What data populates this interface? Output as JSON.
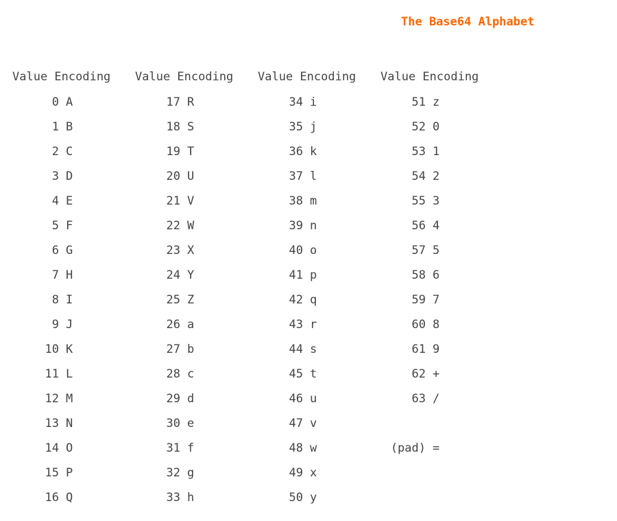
{
  "title": "The Base64 Alphabet",
  "headers": [
    "Value Encoding",
    "Value Encoding",
    "Value Encoding",
    "Value Encoding"
  ],
  "columns": [
    [
      {
        "value": "0",
        "encoding": "A"
      },
      {
        "value": "1",
        "encoding": "B"
      },
      {
        "value": "2",
        "encoding": "C"
      },
      {
        "value": "3",
        "encoding": "D"
      },
      {
        "value": "4",
        "encoding": "E"
      },
      {
        "value": "5",
        "encoding": "F"
      },
      {
        "value": "6",
        "encoding": "G"
      },
      {
        "value": "7",
        "encoding": "H"
      },
      {
        "value": "8",
        "encoding": "I"
      },
      {
        "value": "9",
        "encoding": "J"
      },
      {
        "value": "10",
        "encoding": "K"
      },
      {
        "value": "11",
        "encoding": "L"
      },
      {
        "value": "12",
        "encoding": "M"
      },
      {
        "value": "13",
        "encoding": "N"
      },
      {
        "value": "14",
        "encoding": "O"
      },
      {
        "value": "15",
        "encoding": "P"
      },
      {
        "value": "16",
        "encoding": "Q"
      }
    ],
    [
      {
        "value": "17",
        "encoding": "R"
      },
      {
        "value": "18",
        "encoding": "S"
      },
      {
        "value": "19",
        "encoding": "T"
      },
      {
        "value": "20",
        "encoding": "U"
      },
      {
        "value": "21",
        "encoding": "V"
      },
      {
        "value": "22",
        "encoding": "W"
      },
      {
        "value": "23",
        "encoding": "X"
      },
      {
        "value": "24",
        "encoding": "Y"
      },
      {
        "value": "25",
        "encoding": "Z"
      },
      {
        "value": "26",
        "encoding": "a"
      },
      {
        "value": "27",
        "encoding": "b"
      },
      {
        "value": "28",
        "encoding": "c"
      },
      {
        "value": "29",
        "encoding": "d"
      },
      {
        "value": "30",
        "encoding": "e"
      },
      {
        "value": "31",
        "encoding": "f"
      },
      {
        "value": "32",
        "encoding": "g"
      },
      {
        "value": "33",
        "encoding": "h"
      }
    ],
    [
      {
        "value": "34",
        "encoding": "i"
      },
      {
        "value": "35",
        "encoding": "j"
      },
      {
        "value": "36",
        "encoding": "k"
      },
      {
        "value": "37",
        "encoding": "l"
      },
      {
        "value": "38",
        "encoding": "m"
      },
      {
        "value": "39",
        "encoding": "n"
      },
      {
        "value": "40",
        "encoding": "o"
      },
      {
        "value": "41",
        "encoding": "p"
      },
      {
        "value": "42",
        "encoding": "q"
      },
      {
        "value": "43",
        "encoding": "r"
      },
      {
        "value": "44",
        "encoding": "s"
      },
      {
        "value": "45",
        "encoding": "t"
      },
      {
        "value": "46",
        "encoding": "u"
      },
      {
        "value": "47",
        "encoding": "v"
      },
      {
        "value": "48",
        "encoding": "w"
      },
      {
        "value": "49",
        "encoding": "x"
      },
      {
        "value": "50",
        "encoding": "y"
      }
    ],
    [
      {
        "value": "51",
        "encoding": "z"
      },
      {
        "value": "52",
        "encoding": "0"
      },
      {
        "value": "53",
        "encoding": "1"
      },
      {
        "value": "54",
        "encoding": "2"
      },
      {
        "value": "55",
        "encoding": "3"
      },
      {
        "value": "56",
        "encoding": "4"
      },
      {
        "value": "57",
        "encoding": "5"
      },
      {
        "value": "58",
        "encoding": "6"
      },
      {
        "value": "59",
        "encoding": "7"
      },
      {
        "value": "60",
        "encoding": "8"
      },
      {
        "value": "61",
        "encoding": "9"
      },
      {
        "value": "62",
        "encoding": "+"
      },
      {
        "value": "63",
        "encoding": "/"
      },
      {
        "value": "",
        "encoding": ""
      },
      {
        "value": "(pad)",
        "encoding": "="
      }
    ]
  ],
  "colors": {
    "title": "#ff6600",
    "text": "#444444",
    "background": "#ffffff"
  }
}
